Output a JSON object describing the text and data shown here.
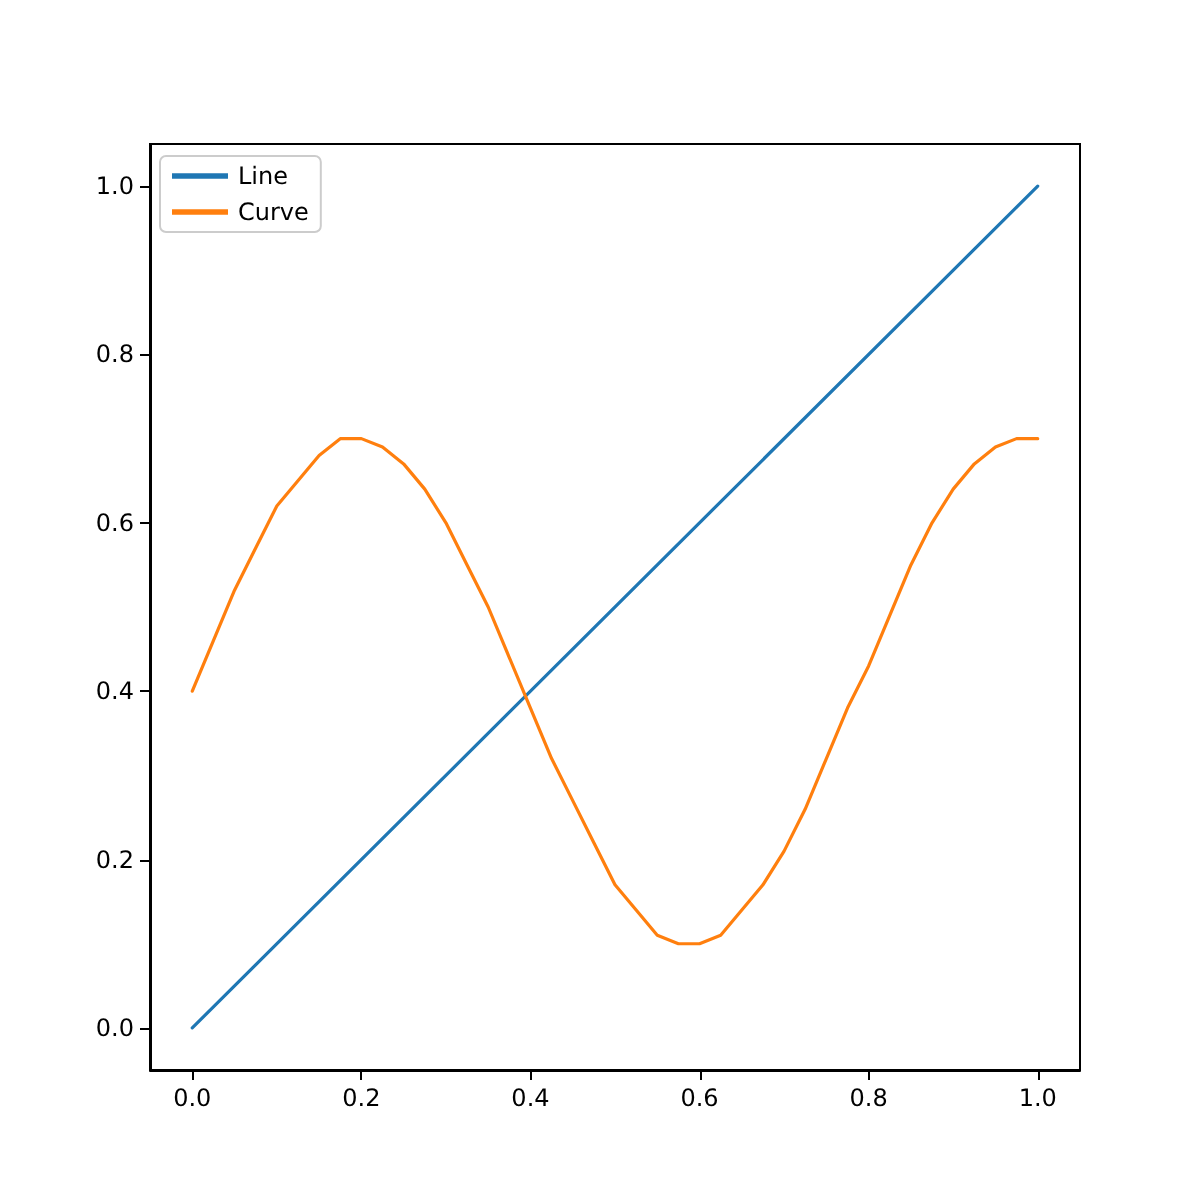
{
  "chart_data": {
    "type": "line",
    "xlim": [
      -0.05,
      1.05
    ],
    "ylim": [
      -0.05,
      1.05
    ],
    "xticks": [
      {
        "value": 0,
        "label": "0.0"
      },
      0.2,
      0.4,
      0.6,
      0.8,
      {
        "value": 1,
        "label": "1.0"
      }
    ],
    "yticks": [
      {
        "value": 0,
        "label": "0.0"
      },
      0.2,
      0.4,
      0.6,
      0.8,
      {
        "value": 1,
        "label": "1.0"
      }
    ],
    "legend": "top left",
    "grid": false,
    "marker": "none",
    "line_style": "solid",
    "series": [
      {
        "name": "Line",
        "color": "#1f77b4",
        "x": [
          0,
          1
        ],
        "values": [
          0,
          1
        ]
      },
      {
        "name": "Curve",
        "color": "#ff7f0e",
        "x": [
          0,
          0.025,
          0.05,
          0.075,
          0.1,
          0.125,
          0.15,
          0.175,
          0.2,
          0.225,
          0.25,
          0.275,
          0.3,
          0.325,
          0.35,
          0.375,
          0.4,
          0.425,
          0.45,
          0.475,
          0.5,
          0.525,
          0.55,
          0.575,
          0.6,
          0.625,
          0.65,
          0.675,
          0.7,
          0.725,
          0.75,
          0.775,
          0.8,
          0.825,
          0.85,
          0.875,
          0.9,
          0.925,
          0.95,
          0.975,
          1
        ],
        "values": [
          0.4,
          0.46,
          0.52,
          0.57,
          0.62,
          0.65,
          0.68,
          0.7,
          0.7,
          0.69,
          0.67,
          0.64,
          0.6,
          0.55,
          0.5,
          0.44,
          0.38,
          0.32,
          0.27,
          0.22,
          0.17,
          0.14,
          0.11,
          0.1,
          0.1,
          0.11,
          0.14,
          0.17,
          0.21,
          0.26,
          0.32,
          0.38,
          0.43,
          0.49,
          0.55,
          0.6,
          0.64,
          0.67,
          0.69,
          0.7,
          0.7
        ]
      }
    ]
  }
}
